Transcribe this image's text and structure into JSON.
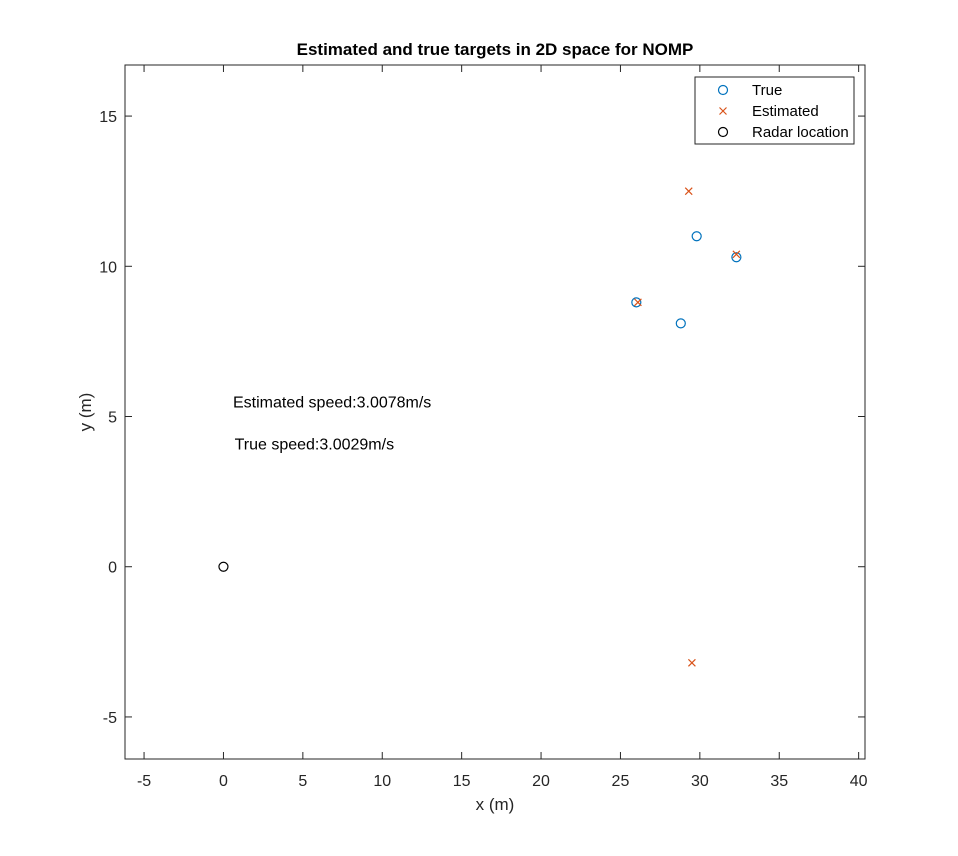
{
  "chart_data": {
    "type": "scatter",
    "title": "Estimated and true targets in 2D space for NOMP",
    "xlabel": "x (m)",
    "ylabel": "y (m)",
    "xlim": [
      -6.2,
      40.4
    ],
    "ylim": [
      -6.4,
      16.7
    ],
    "xticks": [
      -5,
      0,
      5,
      10,
      15,
      20,
      25,
      30,
      35,
      40
    ],
    "yticks": [
      -5,
      0,
      5,
      10,
      15
    ],
    "grid": false,
    "legend_position": "top-right",
    "series": [
      {
        "name": "True",
        "marker": "circle",
        "color": "#0072BD",
        "points": [
          [
            26.0,
            8.8
          ],
          [
            29.8,
            11.0
          ],
          [
            32.3,
            10.3
          ],
          [
            28.8,
            8.1
          ]
        ]
      },
      {
        "name": "Estimated",
        "marker": "x",
        "color": "#D95319",
        "points": [
          [
            29.3,
            12.5
          ],
          [
            26.1,
            8.8
          ],
          [
            32.3,
            10.4
          ],
          [
            29.5,
            -3.2
          ]
        ]
      },
      {
        "name": "Radar location",
        "marker": "circle",
        "color": "#000000",
        "points": [
          [
            0,
            0
          ]
        ]
      }
    ],
    "annotations": [
      {
        "text": "Estimated speed:3.0078m/s",
        "x": 0.6,
        "y": 5.3
      },
      {
        "text": "True speed:3.0029m/s",
        "x": 0.7,
        "y": 3.9
      }
    ]
  }
}
